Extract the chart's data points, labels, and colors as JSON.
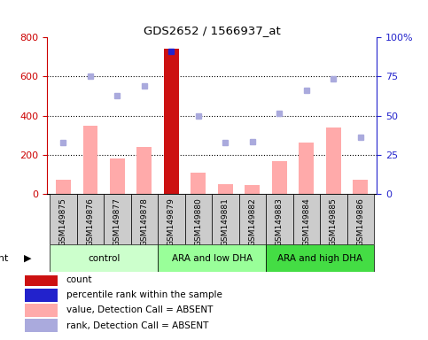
{
  "title": "GDS2652 / 1566937_at",
  "samples": [
    "GSM149875",
    "GSM149876",
    "GSM149877",
    "GSM149878",
    "GSM149879",
    "GSM149880",
    "GSM149881",
    "GSM149882",
    "GSM149883",
    "GSM149884",
    "GSM149885",
    "GSM149886"
  ],
  "groups": [
    {
      "label": "control",
      "color": "#ccffcc",
      "span": [
        0,
        4
      ]
    },
    {
      "label": "ARA and low DHA",
      "color": "#99ff99",
      "span": [
        4,
        8
      ]
    },
    {
      "label": "ARA and high DHA",
      "color": "#44dd44",
      "span": [
        8,
        12
      ]
    }
  ],
  "bar_values": [
    70,
    350,
    180,
    240,
    740,
    110,
    50,
    45,
    165,
    260,
    340,
    70
  ],
  "bar_special_red_idx": 4,
  "bar_color_normal": "#ffaaaa",
  "bar_color_special": "#cc1111",
  "rank_dots": [
    260,
    600,
    500,
    550,
    730,
    400,
    260,
    265,
    410,
    530,
    590,
    290
  ],
  "rank_dot_color": "#aaaadd",
  "percentile_dot_idx": 4,
  "percentile_dot_color": "#2222cc",
  "ylim_left": [
    0,
    800
  ],
  "yticks_left": [
    0,
    200,
    400,
    600,
    800
  ],
  "ytick_labels_right": [
    "0",
    "25",
    "50",
    "75",
    "100%"
  ],
  "grid_values": [
    200,
    400,
    600
  ],
  "left_tick_color": "#cc0000",
  "right_tick_color": "#2222cc",
  "sample_box_color": "#cccccc",
  "legend_items": [
    {
      "color": "#cc1111",
      "label": "count"
    },
    {
      "color": "#2222cc",
      "label": "percentile rank within the sample"
    },
    {
      "color": "#ffaaaa",
      "label": "value, Detection Call = ABSENT"
    },
    {
      "color": "#aaaadd",
      "label": "rank, Detection Call = ABSENT"
    }
  ]
}
